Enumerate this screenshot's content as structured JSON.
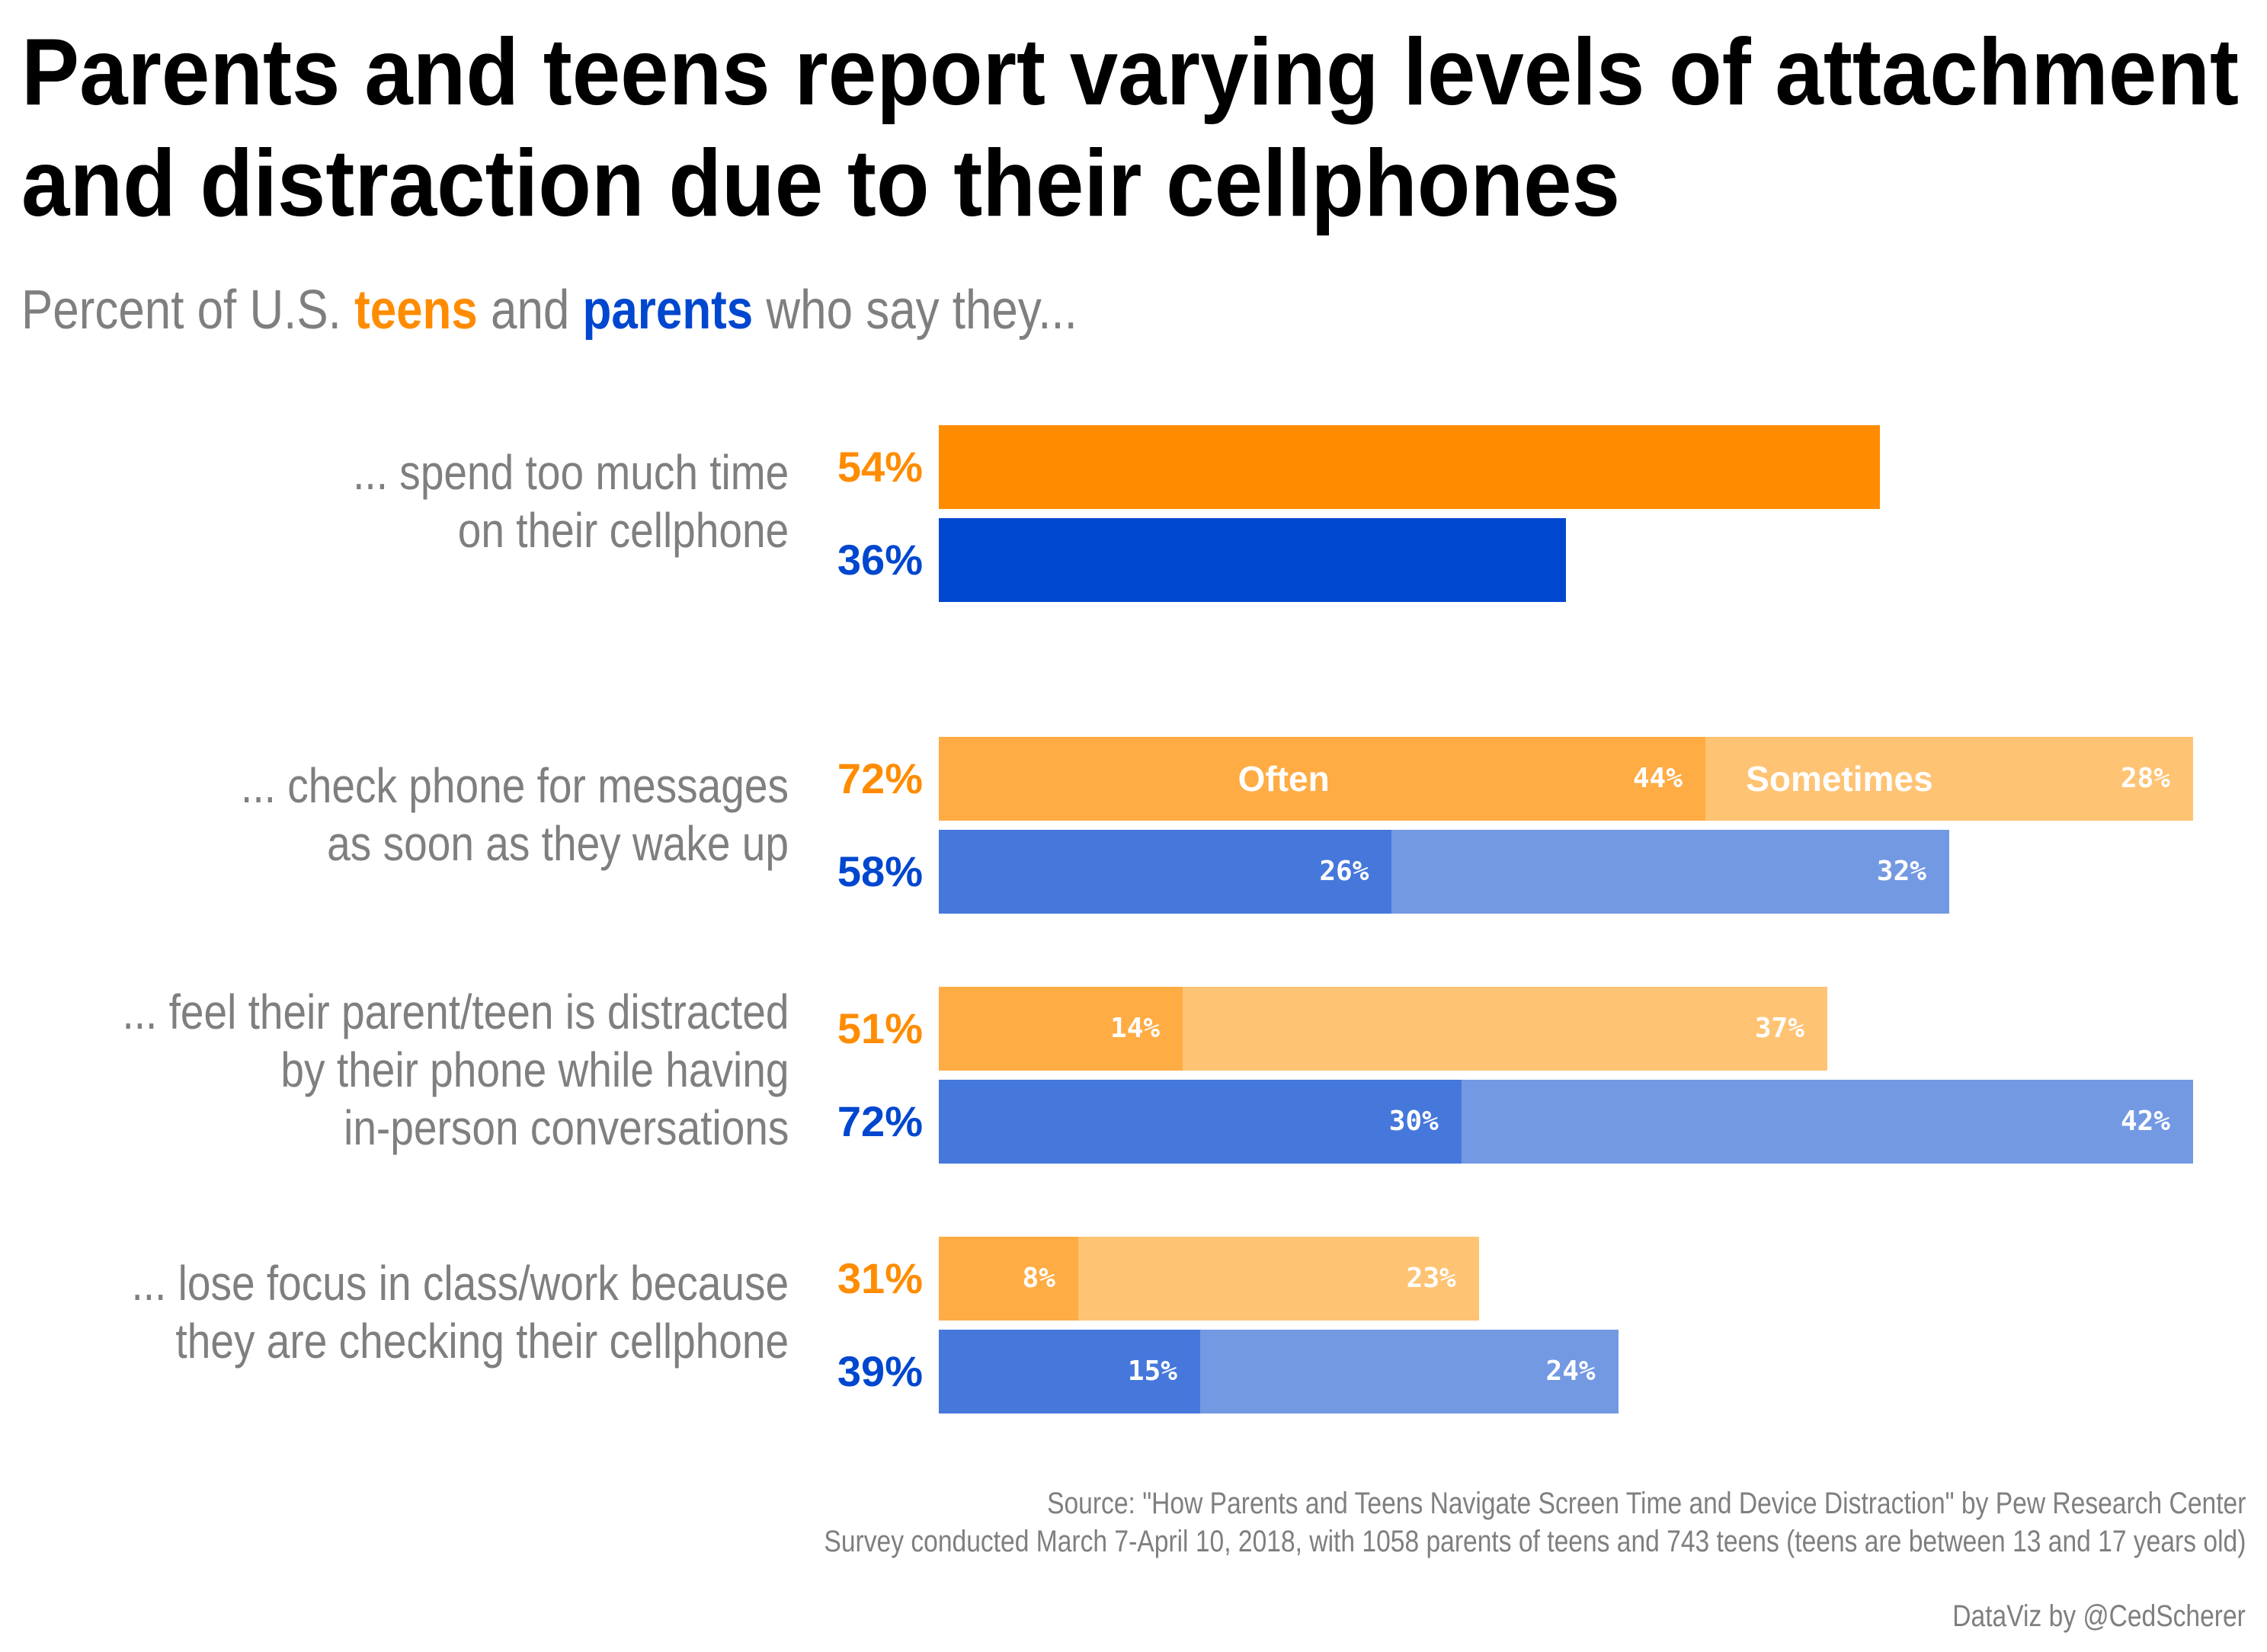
{
  "title_lines": [
    "Parents and teens report varying levels of attachment",
    "and distraction due to their cellphones"
  ],
  "subtitle": {
    "prefix": "Percent of U.S. ",
    "teens": "teens",
    "middle": " and ",
    "parents": "parents",
    "suffix": " who say they..."
  },
  "colors": {
    "teens": "#FF8C00",
    "teens_often": "#FFAC45",
    "teens_sometimes": "#FFC374",
    "parents": "#0047CF",
    "parents_often": "#4678DC",
    "parents_sometimes": "#7499E3",
    "text_grey": "#7f7f7f"
  },
  "chart_data": {
    "type": "bar",
    "orientation": "horizontal",
    "stacked": true,
    "segment_keys": [
      "Often",
      "Sometimes"
    ],
    "categories": [
      {
        "label_lines": [
          "... spend too much time",
          "on their cellphone"
        ],
        "teens": {
          "total": 54,
          "total_label": "54%"
        },
        "parents": {
          "total": 36,
          "total_label": "36%"
        }
      },
      {
        "label_lines": [
          "... check phone for messages",
          "as soon as they wake up"
        ],
        "teens": {
          "total": 72,
          "total_label": "72%",
          "often": 44,
          "often_label": "44%",
          "sometimes": 28,
          "sometimes_label": "28%"
        },
        "parents": {
          "total": 58,
          "total_label": "58%",
          "often": 26,
          "often_label": "26%",
          "sometimes": 32,
          "sometimes_label": "32%"
        }
      },
      {
        "label_lines": [
          "... feel their parent/teen is distracted",
          "by their phone while having",
          "in-person conversations"
        ],
        "teens": {
          "total": 51,
          "total_label": "51%",
          "often": 14,
          "often_label": "14%",
          "sometimes": 37,
          "sometimes_label": "37%"
        },
        "parents": {
          "total": 72,
          "total_label": "72%",
          "often": 30,
          "often_label": "30%",
          "sometimes": 42,
          "sometimes_label": "42%"
        }
      },
      {
        "label_lines": [
          "... lose focus in class/work because",
          "they are checking their cellphone"
        ],
        "teens": {
          "total": 31,
          "total_label": "31%",
          "often": 8,
          "often_label": "8%",
          "sometimes": 23,
          "sometimes_label": "23%"
        },
        "parents": {
          "total": 39,
          "total_label": "39%",
          "often": 15,
          "often_label": "15%",
          "sometimes": 24,
          "sometimes_label": "24%"
        }
      }
    ],
    "xlim": [
      0,
      72
    ]
  },
  "source_lines": [
    "Source: \"How Parents and Teens Navigate Screen Time and Device Distraction\" by Pew Research Center",
    "Survey conducted March 7-April 10, 2018, with 1058 parents of teens and 743 teens (teens are between 13 and 17 years old)"
  ],
  "credit": "DataViz by @CedScherer"
}
